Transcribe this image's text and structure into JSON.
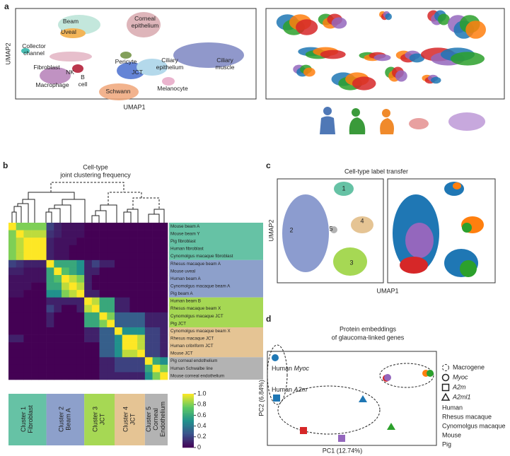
{
  "panel_labels": [
    "a",
    "b",
    "c",
    "d"
  ],
  "panel_a": {
    "y_label": "UMAP2",
    "x_label": "UMAP1",
    "cell_types": [
      {
        "lines": [
          "Beam"
        ]
      },
      {
        "lines": [
          "Uveal"
        ]
      },
      {
        "lines": [
          "Corneal",
          "epithelium"
        ]
      },
      {
        "lines": [
          "Pericyte"
        ]
      },
      {
        "lines": [
          "Collector",
          "channel"
        ]
      },
      {
        "lines": [
          "Fibroblast"
        ]
      },
      {
        "lines": [
          "NK"
        ]
      },
      {
        "lines": [
          "B",
          "cell"
        ]
      },
      {
        "lines": [
          "JCT"
        ]
      },
      {
        "lines": [
          "Ciliary",
          "epithelium"
        ]
      },
      {
        "lines": [
          "Ciliary",
          "muscle"
        ]
      },
      {
        "lines": [
          "Macrophage"
        ]
      },
      {
        "lines": [
          "Schwann"
        ]
      },
      {
        "lines": [
          "Melanocyte"
        ]
      }
    ]
  },
  "chart_data": {
    "type": "heatmap",
    "title": "Cell-type",
    "subtitle": "joint clustering frequency",
    "categories": [
      "Mouse beam A",
      "Mouse beam Y",
      "Pig fibroblast",
      "Human fibroblast",
      "Cynomolgus macaque fibroblast",
      "Rhesus macaque beam A",
      "Mouse uveal",
      "Human beam A",
      "Cynomolgus macaque beam A",
      "Pig beam A",
      "Human beam B",
      "Rhesus macaque beam X",
      "Cynomolgus macaque JCT",
      "Pig JCT",
      "Cynomolgus macaque beam X",
      "Rhesus macaque JCT",
      "Human cribriform JCT",
      "Mouse JCT",
      "Pig corneal endothelium",
      "Human Schwalbe line",
      "Mouse corneal endothelium"
    ],
    "values": [
      [
        1,
        0.8,
        0.8,
        0.8,
        0.8,
        0.2,
        0.1,
        0.05,
        0.05,
        0.05,
        0,
        0,
        0,
        0,
        0,
        0,
        0,
        0,
        0,
        0,
        0
      ],
      [
        0.8,
        1,
        0.9,
        0.9,
        0.9,
        0.15,
        0.1,
        0.05,
        0.05,
        0.05,
        0,
        0,
        0,
        0,
        0,
        0,
        0,
        0,
        0,
        0,
        0
      ],
      [
        0.8,
        0.9,
        1,
        1,
        1,
        0.1,
        0.05,
        0.05,
        0.05,
        0,
        0,
        0,
        0,
        0,
        0,
        0,
        0,
        0,
        0,
        0,
        0
      ],
      [
        0.8,
        0.9,
        1,
        1,
        1,
        0.1,
        0.05,
        0.05,
        0,
        0,
        0,
        0,
        0,
        0,
        0,
        0,
        0,
        0,
        0,
        0,
        0
      ],
      [
        0.8,
        0.9,
        1,
        1,
        1,
        0.1,
        0.05,
        0.05,
        0,
        0,
        0,
        0,
        0,
        0,
        0,
        0,
        0,
        0,
        0,
        0,
        0
      ],
      [
        0.2,
        0.15,
        0.1,
        0.1,
        0.1,
        1,
        0.6,
        0.6,
        0.6,
        0.5,
        0.1,
        0.2,
        0.1,
        0.1,
        0,
        0,
        0,
        0,
        0,
        0,
        0
      ],
      [
        0.1,
        0.1,
        0.05,
        0.05,
        0.05,
        0.6,
        1,
        0.7,
        0.6,
        0.5,
        0.1,
        0.1,
        0,
        0,
        0,
        0,
        0,
        0,
        0,
        0,
        0
      ],
      [
        0.05,
        0.05,
        0.05,
        0.05,
        0.05,
        0.6,
        0.7,
        1,
        0.9,
        0.8,
        0.1,
        0,
        0,
        0,
        0,
        0,
        0,
        0,
        0,
        0,
        0
      ],
      [
        0.05,
        0.05,
        0.05,
        0,
        0,
        0.6,
        0.6,
        0.9,
        1,
        0.9,
        0.1,
        0,
        0,
        0,
        0,
        0,
        0,
        0,
        0,
        0,
        0
      ],
      [
        0.05,
        0.05,
        0,
        0,
        0,
        0.5,
        0.5,
        0.8,
        0.9,
        1,
        0.1,
        0.1,
        0,
        0,
        0,
        0,
        0,
        0,
        0,
        0,
        0
      ],
      [
        0,
        0,
        0,
        0,
        0,
        0.1,
        0.1,
        0.1,
        0.1,
        0.1,
        1,
        0.9,
        0.6,
        0.6,
        0.1,
        0.1,
        0,
        0,
        0,
        0,
        0
      ],
      [
        0,
        0,
        0,
        0,
        0,
        0.2,
        0.1,
        0,
        0,
        0.1,
        0.9,
        1,
        0.6,
        0.6,
        0.1,
        0.1,
        0,
        0,
        0,
        0,
        0
      ],
      [
        0,
        0,
        0,
        0,
        0,
        0.1,
        0,
        0,
        0,
        0,
        0.6,
        0.6,
        1,
        0.8,
        0.3,
        0.3,
        0.3,
        0.3,
        0.1,
        0.1,
        0.1
      ],
      [
        0,
        0,
        0,
        0,
        0,
        0.1,
        0,
        0,
        0,
        0,
        0.6,
        0.6,
        0.8,
        1,
        0.3,
        0.3,
        0.3,
        0.3,
        0.1,
        0.1,
        0.1
      ],
      [
        0,
        0,
        0,
        0,
        0,
        0,
        0,
        0,
        0,
        0,
        0.1,
        0.1,
        0.3,
        0.3,
        1,
        0.5,
        0.5,
        0.5,
        0.2,
        0.2,
        0.1
      ],
      [
        0.1,
        0.1,
        0,
        0,
        0,
        0,
        0,
        0,
        0,
        0,
        0.1,
        0.1,
        0.3,
        0.3,
        0.5,
        1,
        1,
        0.9,
        0.2,
        0.2,
        0.1
      ],
      [
        0,
        0,
        0,
        0,
        0,
        0,
        0,
        0,
        0,
        0,
        0,
        0,
        0.3,
        0.3,
        0.5,
        1,
        1,
        0.9,
        0.2,
        0.2,
        0.1
      ],
      [
        0,
        0,
        0,
        0,
        0,
        0,
        0,
        0,
        0,
        0,
        0,
        0,
        0.3,
        0.3,
        0.5,
        0.9,
        0.9,
        1,
        0.2,
        0.2,
        0.1
      ],
      [
        0,
        0,
        0,
        0,
        0,
        0,
        0,
        0,
        0,
        0,
        0,
        0,
        0.1,
        0.1,
        0.2,
        0.2,
        0.2,
        0.2,
        1,
        0.6,
        0.5
      ],
      [
        0,
        0,
        0,
        0,
        0,
        0,
        0,
        0,
        0,
        0,
        0,
        0,
        0.1,
        0.1,
        0.2,
        0.2,
        0.2,
        0.2,
        0.6,
        1,
        0.8
      ],
      [
        0,
        0,
        0,
        0,
        0,
        0,
        0,
        0,
        0,
        0,
        0,
        0,
        0.1,
        0.1,
        0.1,
        0.1,
        0.1,
        0.1,
        0.5,
        0.8,
        1
      ]
    ],
    "clusters": [
      {
        "lines": [
          "Cluster 1",
          "Fibroblast"
        ],
        "color": "#66c2a5",
        "rows": [
          0,
          1,
          2,
          3,
          4
        ]
      },
      {
        "lines": [
          "Cluster 2",
          "Beam A"
        ],
        "color": "#8da0cb",
        "rows": [
          5,
          6,
          7,
          8,
          9
        ]
      },
      {
        "lines": [
          "Cluster 3",
          "JCT"
        ],
        "color": "#a6d854",
        "rows": [
          10,
          11,
          12,
          13
        ]
      },
      {
        "lines": [
          "Cluster 4",
          "JCT"
        ],
        "color": "#e5c494",
        "rows": [
          14,
          15,
          16,
          17
        ]
      },
      {
        "lines": [
          "Cluster 5",
          "Corneal",
          "Endothelium"
        ],
        "color": "#b3b3b3",
        "rows": [
          18,
          19,
          20
        ]
      }
    ],
    "colormap": [
      "#440154",
      "#3b528b",
      "#21918c",
      "#5ec962",
      "#fde725"
    ],
    "ylim": [
      0,
      1
    ],
    "yticks": [
      0,
      0.2,
      0.4,
      0.6,
      0.8,
      {
        "value": 1,
        "label": "1.0"
      }
    ]
  },
  "panel_c": {
    "title": "Cell-type label transfer",
    "y_label": "UMAP2",
    "x_label": "UMAP1",
    "clusters": [
      "1",
      "2",
      "3",
      "4",
      "5"
    ]
  },
  "panel_d": {
    "title": "Protein embeddings",
    "subtitle": "of glaucoma-linked genes",
    "x_label": "PC1 (12.74%)",
    "y_label": "PC2 (6.84%)",
    "annotations": [
      {
        "species": "Human",
        "gene": "Myoc"
      },
      {
        "species": "Human",
        "gene": "A2m"
      }
    ],
    "legend": {
      "macrogene": "Macrogene",
      "genes": [
        "Myoc",
        "A2m",
        "A2ml1"
      ],
      "species": [
        {
          "name": "Human",
          "color": "#1f77b4"
        },
        {
          "name": "Rhesus macaque",
          "color": "#2ca02c"
        },
        {
          "name": "Cynomolgus macaque",
          "color": "#ff7f0e"
        },
        {
          "name": "Mouse",
          "color": "#d62728"
        },
        {
          "name": "Pig",
          "color": "#9467bd"
        }
      ]
    }
  }
}
